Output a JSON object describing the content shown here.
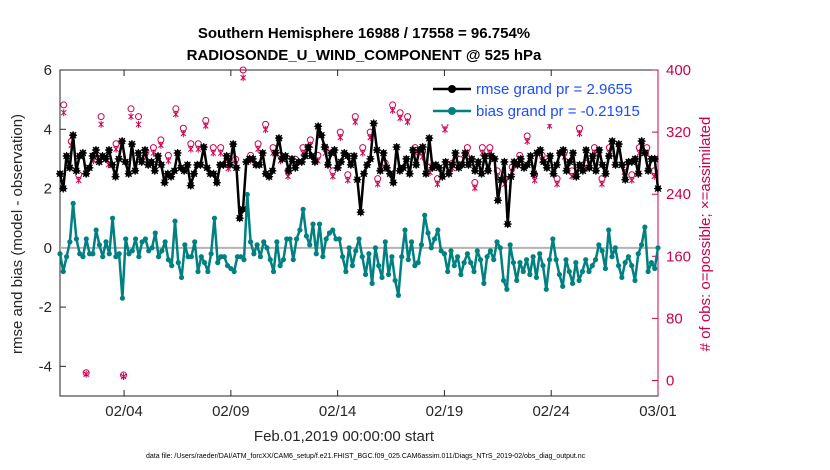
{
  "chart_data": {
    "type": "line",
    "title": "Southern Hemisphere 16988 / 17558 = 96.754%",
    "subtitle": "RADIOSONDE_U_WIND_COMPONENT @ 525 hPa",
    "xlabel": "Feb.01,2019 00:00:00 start",
    "ylabel": "rmse and bias (model - observation)",
    "ylabel_right": "# of obs: o=possible; ×=assimilated",
    "footnote": "data file: /Users/raeder/DAI/ATM_forcXX/CAM6_setup/f.e21.FHIST_BGC.f09_025.CAM6assim.011/Diags_NTrS_2019-02/obs_diag_output.nc",
    "xlim": [
      32,
      60
    ],
    "ylim": [
      -5,
      6
    ],
    "ylim_right": [
      -20,
      400
    ],
    "x_ticks": [
      35,
      40,
      45,
      50,
      55,
      60
    ],
    "x_tick_labels": [
      "02/04",
      "02/09",
      "02/14",
      "02/19",
      "02/24",
      "03/01"
    ],
    "y_ticks": [
      -4,
      -2,
      0,
      2,
      4,
      6
    ],
    "y_tick_labels": [
      "-4",
      "-2",
      "0",
      "2",
      "4",
      "6"
    ],
    "y_ticks_right": [
      0,
      80,
      160,
      240,
      320,
      400
    ],
    "y_tick_labels_right": [
      "0",
      "80",
      "160",
      "240",
      "320",
      "400"
    ],
    "legend_position": "top-right",
    "series": [
      {
        "name": "rmse grand pr = 2.9655",
        "color": "#000000",
        "marker": "star-dot",
        "values": [
          2.5,
          2.0,
          3.1,
          2.7,
          3.8,
          2.6,
          3.1,
          3.2,
          2.5,
          2.7,
          3.1,
          3.3,
          2.9,
          3.1,
          3.0,
          3.3,
          2.8,
          2.4,
          3.0,
          3.6,
          2.9,
          2.5,
          3.5,
          2.6,
          3.2,
          2.9,
          3.3,
          2.8,
          2.9,
          2.6,
          3.1,
          2.8,
          2.2,
          2.5,
          2.4,
          2.6,
          3.2,
          2.7,
          2.6,
          2.8,
          2.1,
          2.5,
          2.8,
          2.8,
          3.4,
          2.7,
          2.5,
          2.5,
          2.2,
          2.8,
          2.8,
          3.1,
          2.8,
          3.5,
          2.7,
          1.0,
          1.3,
          2.9,
          3.0,
          3.0,
          2.8,
          2.8,
          3.2,
          2.5,
          2.4,
          2.6,
          3.2,
          3.7,
          3.0,
          3.1,
          2.6,
          3.0,
          2.7,
          2.9,
          2.9,
          3.1,
          3.4,
          3.1,
          2.9,
          4.1,
          3.8,
          3.4,
          2.8,
          3.2,
          3.3,
          2.7,
          2.9,
          3.2,
          3.1,
          2.8,
          3.1,
          2.3,
          1.2,
          2.5,
          2.8,
          3.0,
          4.2,
          3.3,
          2.6,
          3.2,
          2.7,
          2.5,
          2.2,
          3.4,
          2.6,
          2.7,
          3.0,
          2.5,
          3.3,
          2.8,
          3.3,
          3.4,
          2.5,
          3.7,
          2.7,
          2.8,
          2.7,
          2.4,
          2.9,
          2.5,
          2.8,
          3.2,
          2.7,
          2.8,
          3.2,
          2.8,
          3.0,
          2.6,
          2.9,
          2.5,
          3.1,
          2.6,
          3.1,
          3.0,
          1.6,
          2.3,
          2.9,
          0.8,
          2.4,
          2.9,
          2.8,
          3.0,
          2.7,
          2.8,
          3.1,
          2.5,
          3.2,
          3.3,
          2.9,
          2.7,
          3.1,
          2.5,
          2.8,
          3.2,
          3.3,
          2.6,
          2.9,
          3.2,
          2.4,
          2.8,
          2.6,
          3.3,
          2.7,
          3.1,
          2.6,
          3.3,
          2.8,
          2.5,
          3.1,
          3.6,
          2.8,
          3.5,
          2.8,
          2.3,
          2.9,
          2.9,
          3.0,
          2.5,
          3.6,
          3.2,
          2.6,
          3.0,
          3.0,
          2.0
        ]
      },
      {
        "name": "bias grand pr = -0.21915",
        "color": "#008080",
        "marker": "dot",
        "values": [
          -0.2,
          -0.8,
          -0.3,
          0.2,
          1.5,
          0.3,
          -0.2,
          -0.3,
          0.3,
          -0.2,
          -0.2,
          0.6,
          0.1,
          -0.3,
          0.2,
          -0.2,
          1.0,
          -0.3,
          -0.2,
          -1.7,
          0.3,
          -0.2,
          -0.1,
          0.3,
          -0.3,
          0.2,
          0.3,
          -0.1,
          0.0,
          0.5,
          -0.3,
          -0.1,
          0.2,
          -0.4,
          -0.6,
          0.9,
          -0.5,
          -1.0,
          0.1,
          -0.3,
          -0.3,
          0.2,
          -0.8,
          -0.3,
          -0.5,
          -0.8,
          -0.2,
          1.0,
          -0.5,
          -0.3,
          -0.3,
          -0.6,
          -0.7,
          -0.8,
          -0.3,
          -0.3,
          -0.4,
          1.8,
          0.2,
          -0.2,
          0.1,
          -0.3,
          0.2,
          0.0,
          -0.4,
          -0.8,
          0.2,
          -0.6,
          -0.4,
          0.3,
          0.3,
          -0.4,
          0.3,
          0.6,
          1.3,
          0.4,
          0.1,
          0.8,
          -0.2,
          0.8,
          -0.3,
          0.3,
          0.5,
          0.6,
          0.3,
          0.3,
          -0.3,
          -0.8,
          0.0,
          -0.6,
          -0.1,
          0.3,
          -0.3,
          -0.9,
          -0.2,
          -1.2,
          0.0,
          -0.6,
          -1.0,
          0.2,
          -0.9,
          -0.3,
          -1.1,
          -1.6,
          -0.3,
          0.6,
          -0.4,
          0.2,
          -0.6,
          -0.5,
          0.1,
          1.1,
          0.5,
          0.0,
          0.3,
          0.6,
          -0.1,
          -0.2,
          -0.8,
          -0.1,
          -0.6,
          -0.3,
          -0.9,
          -0.5,
          -0.2,
          -0.5,
          -0.8,
          -0.1,
          -0.4,
          -1.2,
          -0.3,
          -0.1,
          -0.4,
          0.2,
          0.0,
          -1.1,
          -1.4,
          0.1,
          -0.5,
          -1.1,
          -0.5,
          -0.8,
          -0.4,
          -0.9,
          -0.3,
          -1.0,
          -0.2,
          -0.6,
          -1.4,
          -0.4,
          0.3,
          -0.4,
          -0.9,
          -1.3,
          -0.4,
          -0.8,
          -1.2,
          -0.5,
          -1.1,
          -0.8,
          -0.4,
          -0.8,
          -0.6,
          -0.4,
          0.1,
          -0.1,
          -0.7,
          0.6,
          -0.3,
          0.0,
          -0.6,
          -1.0,
          -0.5,
          -0.3,
          -0.6,
          -1.1,
          -0.2,
          0.1,
          0.7,
          -0.8,
          -0.5,
          -0.7,
          0.0
        ]
      },
      {
        "name": "possible",
        "color": "#cc0052",
        "marker": "circle",
        "axis": "right",
        "values": [
          355,
          308,
          265,
          10,
          290,
          340,
          285,
          305,
          7,
          350,
          340,
          295,
          300,
          310,
          290,
          350,
          325,
          305,
          305,
          335,
          300,
          300,
          280,
          285,
          400,
          290,
          305,
          330,
          300,
          290,
          270,
          285,
          300,
          310,
          290,
          300,
          270,
          320,
          265,
          340,
          300,
          320,
          260,
          280,
          355,
          345,
          340,
          300,
          295,
          275,
          260,
          330,
          280,
          285,
          300,
          255,
          300,
          300,
          270,
          260,
          275,
          290,
          315,
          265,
          290,
          335,
          260,
          295,
          270,
          325,
          280,
          300,
          260,
          300,
          345,
          275,
          265,
          300,
          300,
          270
        ]
      },
      {
        "name": "assimilated",
        "color": "#cc0052",
        "marker": "x",
        "axis": "right",
        "values": [
          345,
          303,
          258,
          8,
          283,
          330,
          278,
          298,
          5,
          340,
          330,
          288,
          293,
          303,
          283,
          343,
          318,
          298,
          298,
          328,
          293,
          293,
          273,
          278,
          390,
          283,
          298,
          323,
          293,
          283,
          263,
          278,
          293,
          303,
          283,
          293,
          263,
          313,
          258,
          333,
          293,
          313,
          253,
          273,
          348,
          338,
          333,
          293,
          288,
          268,
          253,
          323,
          273,
          278,
          293,
          248,
          293,
          293,
          263,
          253,
          268,
          283,
          308,
          258,
          283,
          328,
          253,
          288,
          263,
          318,
          273,
          293,
          253,
          293,
          338,
          268,
          258,
          293,
          293,
          263
        ]
      }
    ]
  }
}
